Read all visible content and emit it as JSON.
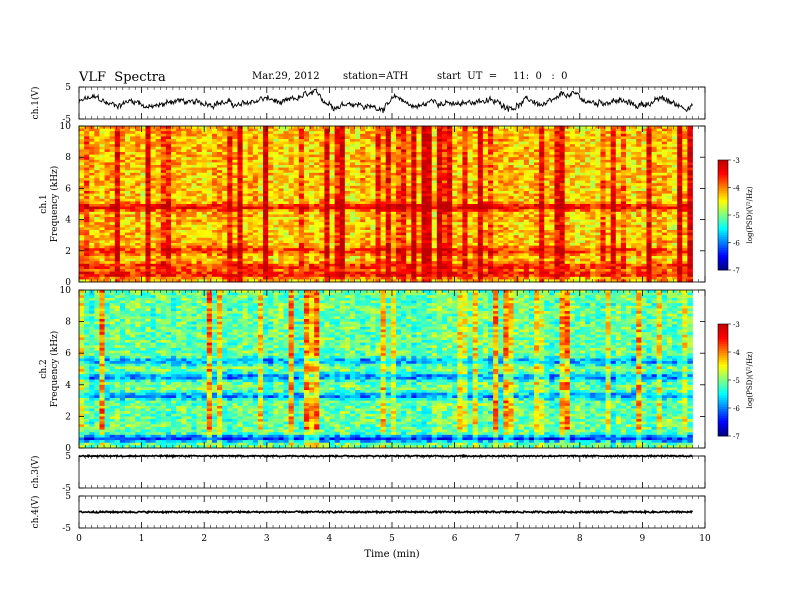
{
  "header": {
    "title": "VLF  Spectra",
    "date": "Mar.29, 2012",
    "station": "station=ATH",
    "start": "start  UT  =     11:  0   :  0"
  },
  "chart_data": [
    {
      "type": "line",
      "panel": "ch1",
      "ylabel": "ch.1(V)",
      "yticks": [
        "5",
        "-5"
      ],
      "ylim": [
        -5,
        5
      ],
      "xlim": [
        0,
        10
      ],
      "data_xmax": 9.8,
      "level": 0.0,
      "amplitude": 3.0,
      "noise": "large"
    },
    {
      "type": "heatmap",
      "panel": "ch1-spectrogram",
      "ylabel_channel": "ch.1",
      "ylabel": "Frequency  (kHz)",
      "yticks": [
        "0",
        "2",
        "4",
        "6",
        "8",
        "10"
      ],
      "ylim": [
        0,
        10
      ],
      "xlim": [
        0,
        10
      ],
      "data_xmax": 9.8,
      "colorbar": {
        "label": "log(PSD)(V²/Hz)",
        "ticks": [
          "-3",
          "-4",
          "-5",
          "-6",
          "-7"
        ],
        "range": [
          -7,
          -3
        ]
      },
      "mean_log_psd": -4.3,
      "bands": [
        {
          "freq_khz": 4.8,
          "log_psd": -3.3
        },
        {
          "freq_khz": 2.0,
          "log_psd": -3.6
        },
        {
          "freq_khz": 1.0,
          "log_psd": -3.5
        },
        {
          "freq_khz": 0.5,
          "log_psd": -3.4
        }
      ]
    },
    {
      "type": "heatmap",
      "panel": "ch2-spectrogram",
      "ylabel_channel": "ch.2",
      "ylabel": "Frequency  (kHz)",
      "yticks": [
        "0",
        "2",
        "4",
        "6",
        "8",
        "10"
      ],
      "ylim": [
        0,
        10
      ],
      "xlim": [
        0,
        10
      ],
      "data_xmax": 9.8,
      "colorbar": {
        "label": "log(PSD)(V²/Hz)",
        "ticks": [
          "-3",
          "-4",
          "-5",
          "-6",
          "-7"
        ],
        "range": [
          -7,
          -3
        ]
      },
      "mean_log_psd": -5.1,
      "bands": [
        {
          "freq_khz": 5.5,
          "log_psd": -6.0
        },
        {
          "freq_khz": 4.5,
          "log_psd": -6.1
        },
        {
          "freq_khz": 3.3,
          "log_psd": -6.0
        },
        {
          "freq_khz": 0.6,
          "log_psd": -6.4
        }
      ]
    },
    {
      "type": "line",
      "panel": "ch3",
      "ylabel": "ch.3(V)",
      "yticks": [
        "5",
        "-5"
      ],
      "ylim": [
        -5,
        5
      ],
      "xlim": [
        0,
        10
      ],
      "data_xmax": 9.8,
      "level": 5.0,
      "amplitude": 0.2,
      "noise": "small"
    },
    {
      "type": "line",
      "panel": "ch4",
      "ylabel": "ch.4(V)",
      "yticks": [
        "5",
        "-5"
      ],
      "ylim": [
        -5,
        5
      ],
      "xlim": [
        0,
        10
      ],
      "data_xmax": 9.8,
      "level": 0.0,
      "amplitude": 0.25,
      "noise": "small"
    }
  ],
  "xaxis": {
    "label": "Time  (min)",
    "ticks": [
      "0",
      "1",
      "2",
      "3",
      "4",
      "5",
      "6",
      "7",
      "8",
      "9",
      "10"
    ],
    "range": [
      0,
      10
    ]
  }
}
